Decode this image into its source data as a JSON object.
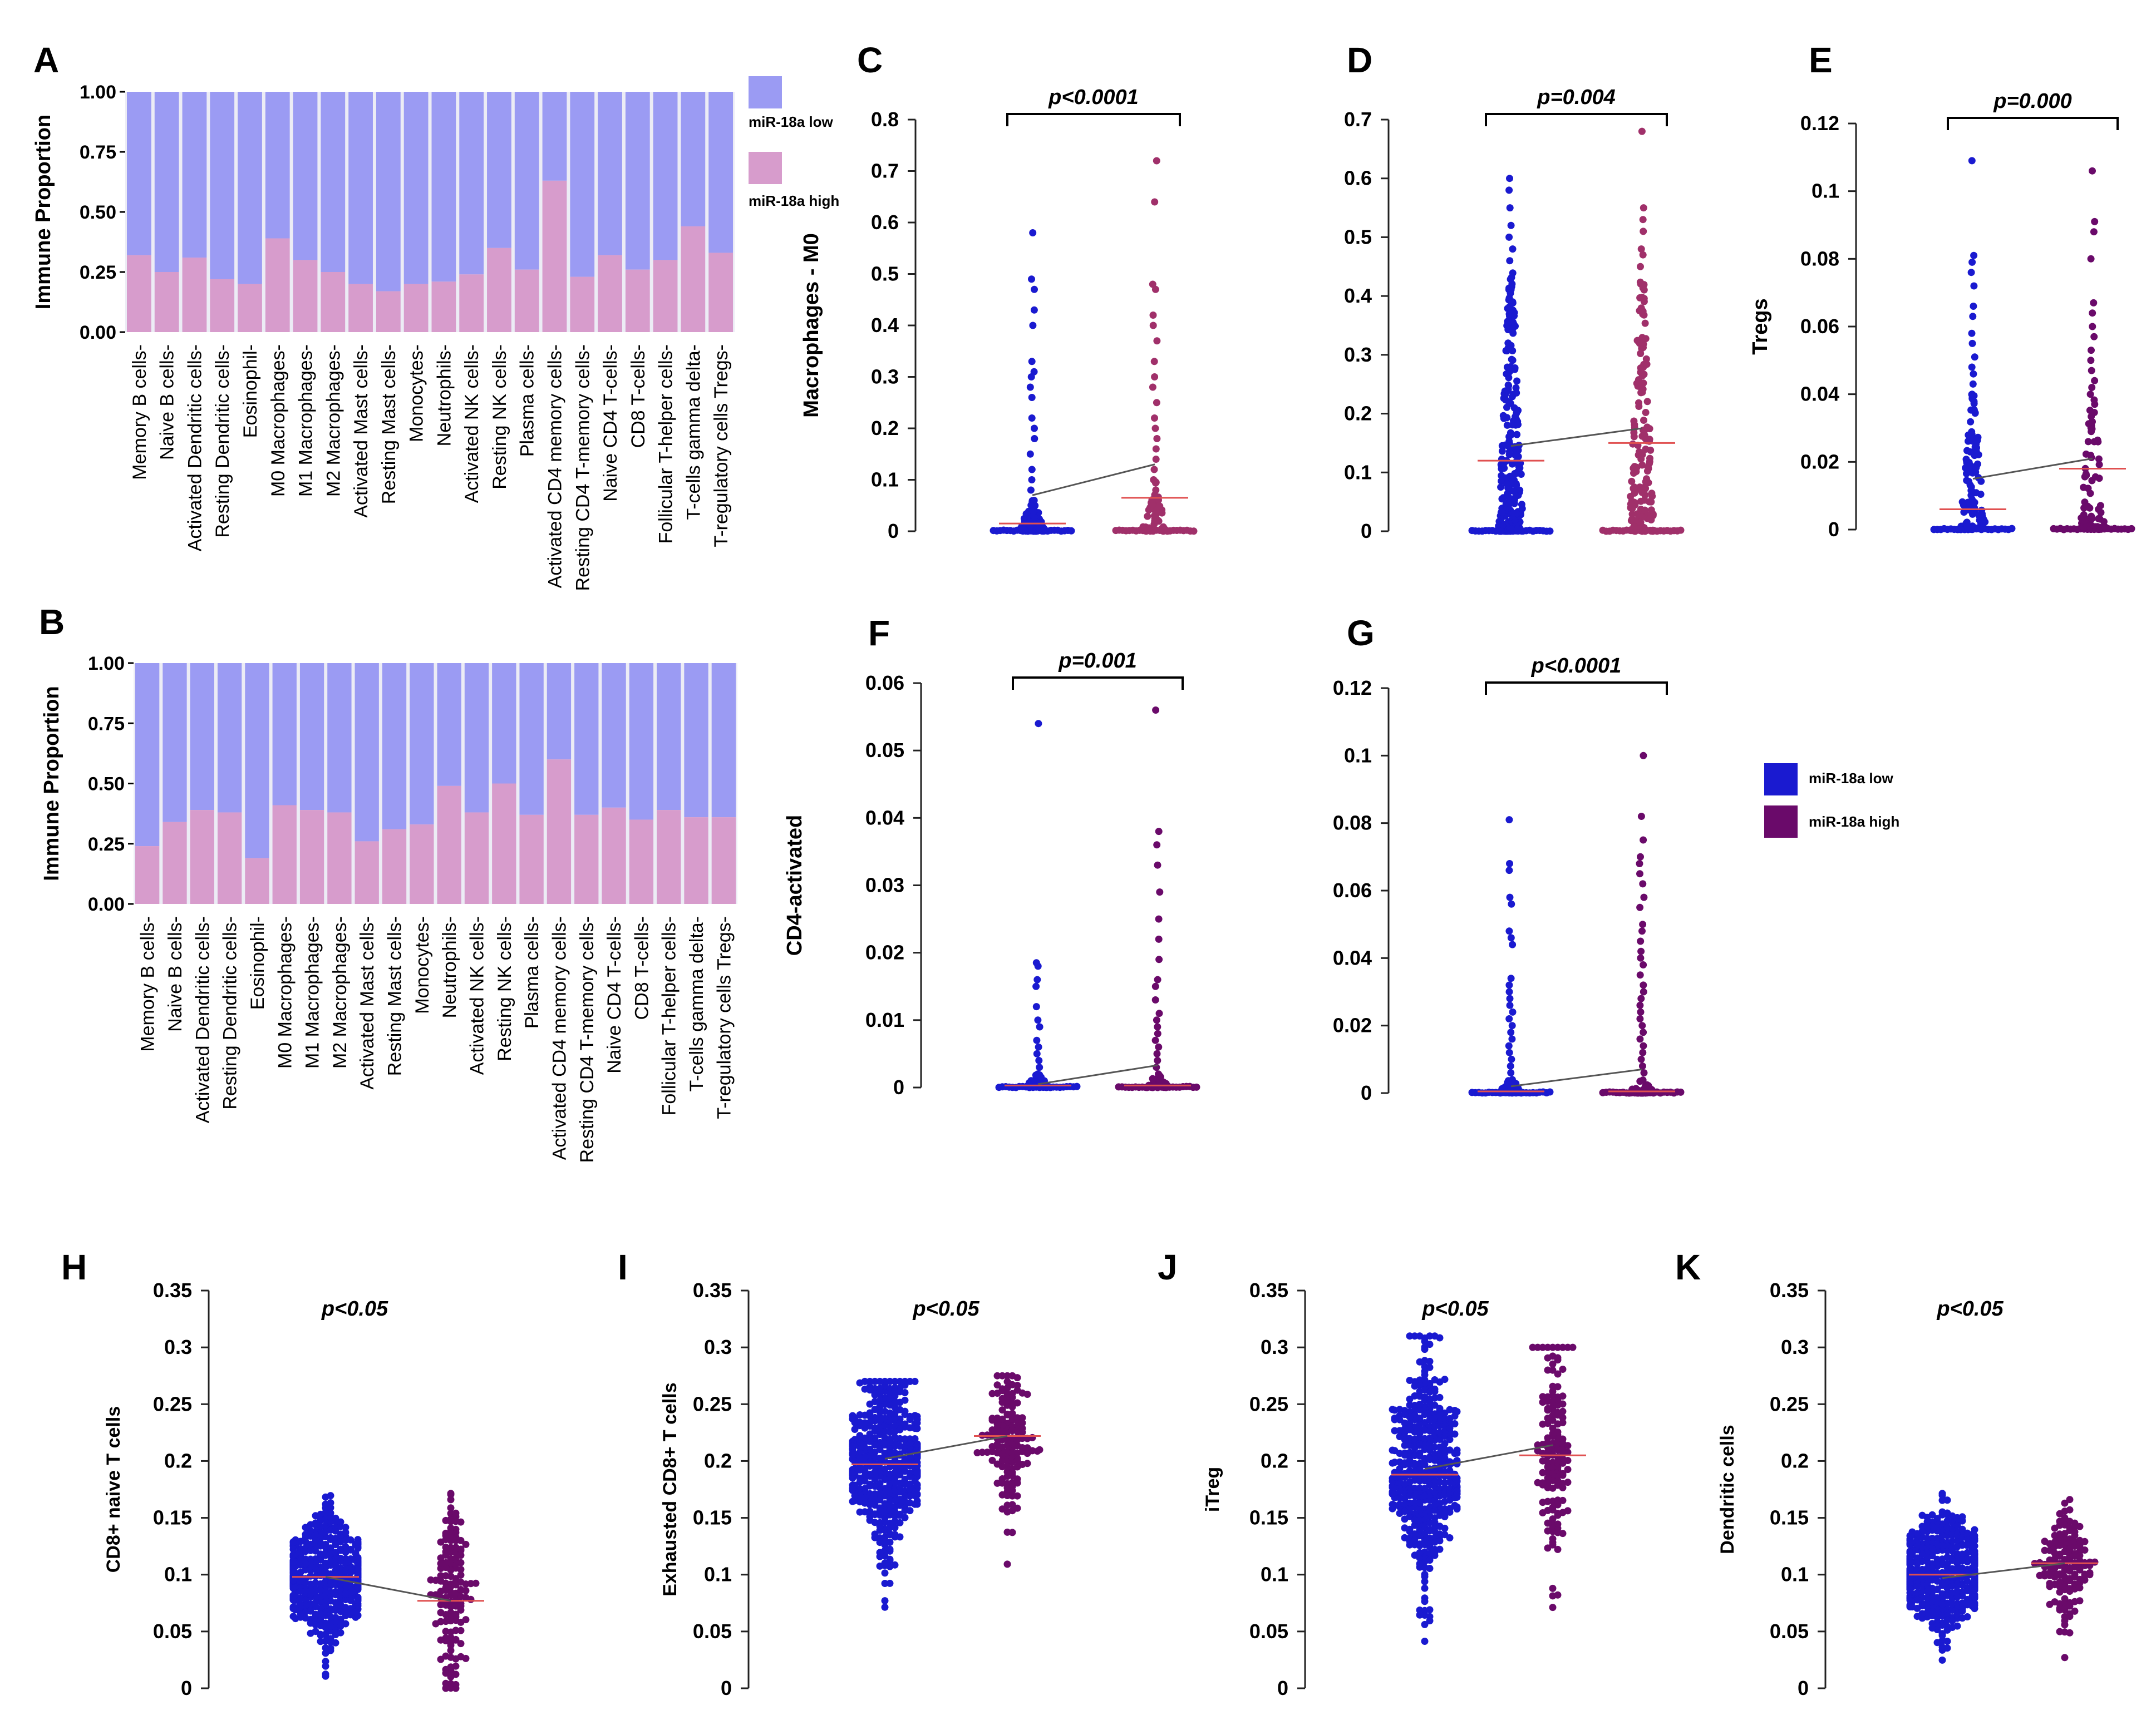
{
  "colors": {
    "stack_low": "#9b9bf3",
    "stack_high": "#d79ccc",
    "stack_bg": "#ececf5",
    "dot_low": "#1a1ad0",
    "dot_high": "#6a0a6a",
    "dot_high_light": "#a0306a",
    "mean_line": "#e05050",
    "trend_line": "#555555"
  },
  "legend_top": {
    "low": "miR-18a low",
    "high": "miR-18a high"
  },
  "legend_mid": {
    "low": "miR-18a low",
    "high": "miR-18a high"
  },
  "cell_types": [
    "Memory B cells-",
    "Naive B cells-",
    "Activated Dendritic cells-",
    "Resting Dendritic cells-",
    "Eosinophil-",
    "M0 Macrophages-",
    "M1 Macrophages-",
    "M2 Macrophages-",
    "Activated Mast cells-",
    "Resting Mast cells-",
    "Monocytes-",
    "Neutrophils-",
    "Activated NK cells-",
    "Resting NK cells-",
    "Plasma cells-",
    "Activated CD4 memory cells-",
    "Resting CD4 T-memory cells-",
    "Naive CD4 T-cells-",
    "CD8 T-cells-",
    "Follicular T-helper cells-",
    "T-cells gamma delta-",
    "T-regulatory cells Tregs-"
  ],
  "chart_data": [
    {
      "panel": "A",
      "type": "bar",
      "stacked": true,
      "ylabel": "Immune Proportion",
      "yticks": [
        "0.00",
        "0.25",
        "0.50",
        "0.75",
        "1.00"
      ],
      "ylim": [
        0,
        1
      ],
      "series": [
        {
          "name": "miR-18a high",
          "values": [
            0.32,
            0.25,
            0.31,
            0.22,
            0.2,
            0.39,
            0.3,
            0.25,
            0.2,
            0.17,
            0.2,
            0.21,
            0.24,
            0.35,
            0.26,
            0.63,
            0.23,
            0.32,
            0.26,
            0.3,
            0.44,
            0.33
          ]
        },
        {
          "name": "miR-18a low",
          "values": [
            0.68,
            0.75,
            0.69,
            0.78,
            0.8,
            0.61,
            0.7,
            0.75,
            0.8,
            0.83,
            0.8,
            0.79,
            0.76,
            0.65,
            0.74,
            0.37,
            0.77,
            0.68,
            0.74,
            0.7,
            0.56,
            0.67
          ]
        }
      ]
    },
    {
      "panel": "B",
      "type": "bar",
      "stacked": true,
      "ylabel": "Immune Proportion",
      "yticks": [
        "0.00",
        "0.25",
        "0.50",
        "0.75",
        "1.00"
      ],
      "ylim": [
        0,
        1
      ],
      "series": [
        {
          "name": "miR-18a high",
          "values": [
            0.24,
            0.34,
            0.39,
            0.38,
            0.19,
            0.41,
            0.39,
            0.38,
            0.26,
            0.31,
            0.33,
            0.49,
            0.38,
            0.5,
            0.37,
            0.6,
            0.37,
            0.4,
            0.35,
            0.39,
            0.36,
            0.36
          ]
        },
        {
          "name": "miR-18a low",
          "values": [
            0.76,
            0.66,
            0.61,
            0.62,
            0.81,
            0.59,
            0.61,
            0.62,
            0.74,
            0.69,
            0.67,
            0.51,
            0.62,
            0.5,
            0.63,
            0.4,
            0.63,
            0.6,
            0.65,
            0.61,
            0.64,
            0.64
          ]
        }
      ]
    },
    {
      "panel": "C",
      "type": "scatter",
      "ylabel": "Macrophages - M0",
      "pvalue": "p<0.0001",
      "ylim": [
        0,
        0.8
      ],
      "yticks": [
        "0",
        "0.1",
        "0.2",
        "0.3",
        "0.4",
        "0.5",
        "0.6",
        "0.7",
        "0.8"
      ],
      "means": [
        0.015,
        0.065
      ],
      "trend": [
        0.07,
        0.13
      ],
      "n": [
        150,
        70
      ],
      "outliers_low": [
        0.58,
        0.49,
        0.47,
        0.43,
        0.4,
        0.33,
        0.31,
        0.3,
        0.28,
        0.26,
        0.22,
        0.2,
        0.18,
        0.15,
        0.12,
        0.1,
        0.08,
        0.06,
        0.05,
        0.04
      ],
      "outliers_high": [
        0.72,
        0.64,
        0.48,
        0.47,
        0.42,
        0.4,
        0.37,
        0.33,
        0.3,
        0.28,
        0.25,
        0.22,
        0.2,
        0.18,
        0.16,
        0.14,
        0.12,
        0.1,
        0.08,
        0.06,
        0.05,
        0.04,
        0.03,
        0.02
      ],
      "zero_heavy": true,
      "spread_max": [
        0.06,
        0.1
      ]
    },
    {
      "panel": "D",
      "type": "scatter",
      "ylabel": "",
      "pvalue": "p=0.004",
      "ylim": [
        0,
        0.7
      ],
      "yticks": [
        "0",
        "0.1",
        "0.2",
        "0.3",
        "0.4",
        "0.5",
        "0.6",
        "0.7"
      ],
      "means": [
        0.12,
        0.15
      ],
      "trend": [
        0.145,
        0.175
      ],
      "n": [
        420,
        260
      ],
      "outliers_low": [
        0.6,
        0.58,
        0.55,
        0.52,
        0.5,
        0.48,
        0.46
      ],
      "outliers_high": [
        0.68,
        0.55,
        0.53,
        0.51,
        0.48,
        0.47,
        0.45
      ],
      "zero_heavy": true,
      "spread_max": [
        0.45,
        0.45
      ]
    },
    {
      "panel": "E",
      "type": "scatter",
      "ylabel": "Tregs",
      "pvalue": "p=0.000",
      "ylim": [
        0,
        0.12
      ],
      "yticks": [
        "0",
        "0.02",
        "0.04",
        "0.06",
        "0.08",
        "0.1",
        "0.12"
      ],
      "means": [
        0.006,
        0.018
      ],
      "trend": [
        0.015,
        0.021
      ],
      "n": [
        180,
        110
      ],
      "outliers_low": [
        0.109,
        0.081,
        0.079,
        0.076,
        0.072,
        0.066,
        0.063,
        0.058,
        0.055,
        0.051,
        0.048,
        0.046,
        0.043,
        0.04
      ],
      "outliers_high": [
        0.106,
        0.091,
        0.088,
        0.08,
        0.067,
        0.064,
        0.06,
        0.057,
        0.053,
        0.05,
        0.047,
        0.044,
        0.042,
        0.04
      ],
      "zero_heavy": true,
      "spread_max": [
        0.04,
        0.04
      ]
    },
    {
      "panel": "F",
      "type": "scatter",
      "ylabel": "CD4-activated",
      "pvalue": "p=0.001",
      "ylim": [
        0,
        0.06
      ],
      "yticks": [
        "0",
        "0.01",
        "0.02",
        "0.03",
        "0.04",
        "0.05",
        "0.06"
      ],
      "means": [
        0.0003,
        0.0003
      ],
      "trend": [
        0.0005,
        0.0033
      ],
      "n": [
        60,
        60
      ],
      "outliers_low": [
        0.054,
        0.0185,
        0.018,
        0.016,
        0.015,
        0.012,
        0.01,
        0.009,
        0.007,
        0.006,
        0.005,
        0.004,
        0.003,
        0.002
      ],
      "outliers_high": [
        0.056,
        0.038,
        0.036,
        0.033,
        0.029,
        0.025,
        0.022,
        0.019,
        0.016,
        0.015,
        0.013,
        0.011,
        0.01,
        0.009,
        0.008,
        0.007,
        0.006,
        0.005,
        0.004,
        0.003,
        0.002
      ],
      "zero_heavy": true,
      "spread_max": [
        0.002,
        0.002
      ]
    },
    {
      "panel": "G",
      "type": "scatter",
      "ylabel": "",
      "pvalue": "p<0.0001",
      "ylim": [
        0,
        0.12
      ],
      "yticks": [
        "0",
        "0.02",
        "0.04",
        "0.06",
        "0.08",
        "0.1",
        "0.12"
      ],
      "means": [
        0.0005,
        0.0005
      ],
      "trend": [
        0.002,
        0.007
      ],
      "n": [
        80,
        80
      ],
      "outliers_low": [
        0.081,
        0.068,
        0.066,
        0.058,
        0.056,
        0.048,
        0.046,
        0.044,
        0.034,
        0.032,
        0.03,
        0.028,
        0.026,
        0.024,
        0.022,
        0.02,
        0.018,
        0.016,
        0.014,
        0.012,
        0.01,
        0.008,
        0.006
      ],
      "outliers_high": [
        0.1,
        0.082,
        0.075,
        0.07,
        0.068,
        0.065,
        0.062,
        0.058,
        0.055,
        0.05,
        0.048,
        0.045,
        0.042,
        0.04,
        0.038,
        0.035,
        0.032,
        0.03,
        0.028,
        0.026,
        0.024,
        0.022,
        0.02,
        0.018,
        0.016,
        0.014,
        0.012,
        0.01,
        0.008,
        0.006
      ],
      "zero_heavy": true,
      "spread_max": [
        0.004,
        0.004
      ]
    },
    {
      "panel": "H",
      "type": "scatter",
      "ylabel": "CD8+ naive T cells",
      "pvalue": "p<0.05",
      "ylim": [
        0,
        0.35
      ],
      "yticks": [
        "0",
        "0.05",
        "0.1",
        "0.15",
        "0.2",
        "0.25",
        "0.3",
        "0.35"
      ],
      "means": [
        0.098,
        0.077
      ],
      "trend": [
        0.098,
        0.077
      ],
      "n": [
        420,
        140
      ],
      "dist": [
        [
          0.098,
          0.03,
          0.01,
          0.2
        ],
        [
          0.077,
          0.04,
          0.0,
          0.23
        ]
      ]
    },
    {
      "panel": "I",
      "type": "scatter",
      "ylabel": "Exhausted CD8+ T cells",
      "pvalue": "p<0.05",
      "ylim": [
        0,
        0.35
      ],
      "yticks": [
        "0",
        "0.05",
        "0.1",
        "0.15",
        "0.2",
        "0.25",
        "0.3",
        "0.35"
      ],
      "means": [
        0.197,
        0.222
      ],
      "trend": [
        0.202,
        0.222
      ],
      "n": [
        420,
        140
      ],
      "dist": [
        [
          0.197,
          0.04,
          0.0,
          0.27
        ],
        [
          0.222,
          0.03,
          0.065,
          0.275
        ]
      ]
    },
    {
      "panel": "J",
      "type": "scatter",
      "ylabel": "iTreg",
      "pvalue": "p<0.05",
      "ylim": [
        0,
        0.35
      ],
      "yticks": [
        "0",
        "0.05",
        "0.1",
        "0.15",
        "0.2",
        "0.25",
        "0.3",
        "0.35"
      ],
      "means": [
        0.188,
        0.205
      ],
      "trend": [
        0.193,
        0.214
      ],
      "n": [
        420,
        140
      ],
      "dist": [
        [
          0.188,
          0.05,
          0.0,
          0.31
        ],
        [
          0.205,
          0.055,
          0.0,
          0.3
        ]
      ]
    },
    {
      "panel": "K",
      "type": "scatter",
      "ylabel": "Dendritic cells",
      "pvalue": "p<0.05",
      "ylim": [
        0,
        0.35
      ],
      "yticks": [
        "0",
        "0.05",
        "0.1",
        "0.15",
        "0.2",
        "0.25",
        "0.3",
        "0.35"
      ],
      "means": [
        0.1,
        0.11
      ],
      "trend": [
        0.097,
        0.11
      ],
      "n": [
        420,
        140
      ],
      "dist": [
        [
          0.1,
          0.025,
          0.01,
          0.19
        ],
        [
          0.11,
          0.025,
          0.0,
          0.175
        ]
      ]
    }
  ]
}
